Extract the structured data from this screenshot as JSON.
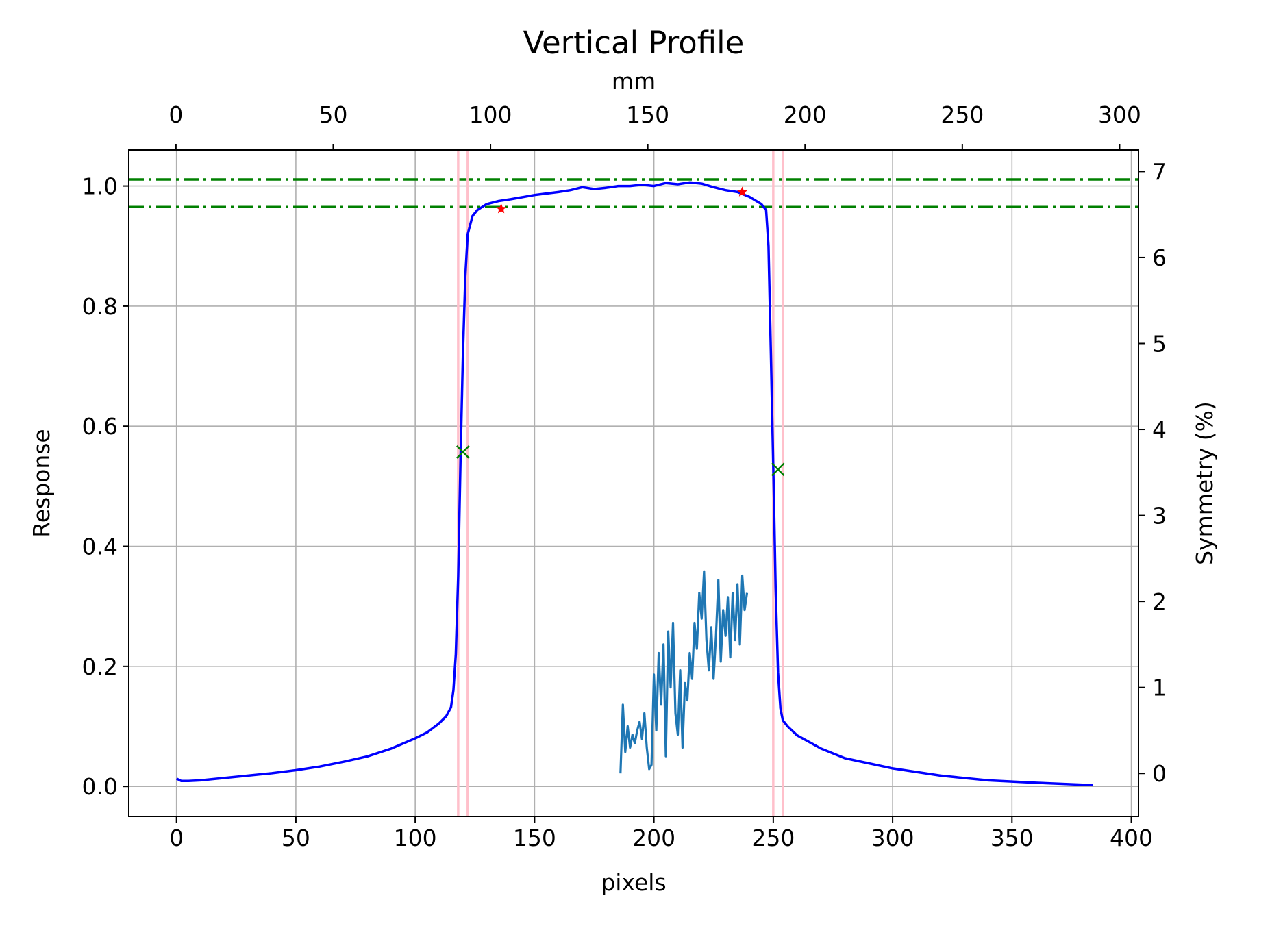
{
  "chart_data": {
    "type": "line",
    "title": "Vertical Profile",
    "xlabel": "pixels",
    "ylabel": "Response",
    "x2label": "mm",
    "y2label": "Symmetry (%)",
    "xlim": [
      -20,
      403
    ],
    "ylim": [
      -0.05,
      1.06
    ],
    "x2lim": [
      -15,
      306
    ],
    "y2lim": [
      -0.5,
      7.25
    ],
    "xticks": [
      0,
      50,
      100,
      150,
      200,
      250,
      300,
      350,
      400
    ],
    "yticks": [
      0.0,
      0.2,
      0.4,
      0.6,
      0.8,
      1.0
    ],
    "x2ticks": [
      0,
      50,
      100,
      150,
      200,
      250,
      300
    ],
    "y2ticks": [
      0,
      1,
      2,
      3,
      4,
      5,
      6,
      7
    ],
    "grid": true,
    "colors": {
      "profile": "#0000ff",
      "symmetry": "#1f77b4",
      "bands": "#008000",
      "edges": "#ffc0cb",
      "markers_fwhm": "#008000",
      "markers_flat": "#ff0000",
      "grid": "#b0b0b0"
    },
    "horizontal_bands": [
      1.011,
      0.965
    ],
    "vertical_edges": [
      118,
      122,
      250,
      254
    ],
    "profile": {
      "x": [
        0,
        2,
        5,
        10,
        20,
        30,
        40,
        50,
        60,
        70,
        80,
        90,
        100,
        105,
        110,
        113,
        115,
        116,
        117,
        118,
        119,
        120,
        121,
        122,
        124,
        126,
        128,
        130,
        135,
        140,
        150,
        160,
        165,
        170,
        175,
        180,
        185,
        190,
        195,
        200,
        205,
        210,
        215,
        220,
        225,
        230,
        235,
        240,
        245,
        247,
        248,
        249,
        250,
        251,
        252,
        253,
        254,
        256,
        260,
        270,
        280,
        300,
        320,
        340,
        360,
        384
      ],
      "y": [
        0.013,
        0.009,
        0.009,
        0.01,
        0.014,
        0.018,
        0.022,
        0.027,
        0.033,
        0.041,
        0.05,
        0.063,
        0.08,
        0.09,
        0.105,
        0.117,
        0.132,
        0.16,
        0.22,
        0.35,
        0.55,
        0.72,
        0.85,
        0.92,
        0.95,
        0.96,
        0.965,
        0.97,
        0.975,
        0.978,
        0.985,
        0.99,
        0.993,
        0.998,
        0.995,
        0.997,
        1.0,
        1.0,
        1.002,
        1.0,
        1.005,
        1.003,
        1.006,
        1.004,
        0.998,
        0.993,
        0.99,
        0.982,
        0.97,
        0.96,
        0.9,
        0.72,
        0.53,
        0.33,
        0.19,
        0.13,
        0.11,
        0.1,
        0.085,
        0.063,
        0.047,
        0.03,
        0.018,
        0.01,
        0.006,
        0.002
      ]
    },
    "symmetry": {
      "x": [
        186,
        187,
        188,
        189,
        190,
        191,
        192,
        193,
        194,
        195,
        196,
        197,
        198,
        199,
        200,
        201,
        202,
        203,
        204,
        205,
        206,
        207,
        208,
        209,
        210,
        211,
        212,
        213,
        214,
        215,
        216,
        217,
        218,
        219,
        220,
        221,
        222,
        223,
        224,
        225,
        226,
        227,
        228,
        229,
        230,
        231,
        232,
        233,
        234,
        235,
        236,
        237,
        238,
        239
      ],
      "y": [
        0.0,
        0.8,
        0.25,
        0.55,
        0.3,
        0.45,
        0.35,
        0.5,
        0.6,
        0.4,
        0.7,
        0.3,
        0.05,
        0.1,
        1.15,
        0.5,
        1.4,
        0.8,
        1.5,
        0.2,
        1.65,
        1.0,
        1.75,
        0.7,
        0.45,
        1.2,
        0.3,
        1.05,
        0.85,
        1.4,
        1.1,
        1.75,
        1.45,
        2.1,
        1.8,
        2.35,
        1.55,
        1.2,
        1.7,
        1.1,
        1.6,
        2.25,
        1.3,
        1.9,
        1.6,
        2.05,
        1.35,
        2.1,
        1.55,
        2.2,
        1.5,
        2.3,
        1.9,
        2.1
      ]
    },
    "markers": {
      "fwhm_x": [
        120,
        252
      ],
      "fwhm_y": [
        0.557,
        0.528
      ],
      "flat_x": [
        136,
        237
      ],
      "flat_y": [
        0.962,
        0.99
      ]
    }
  }
}
